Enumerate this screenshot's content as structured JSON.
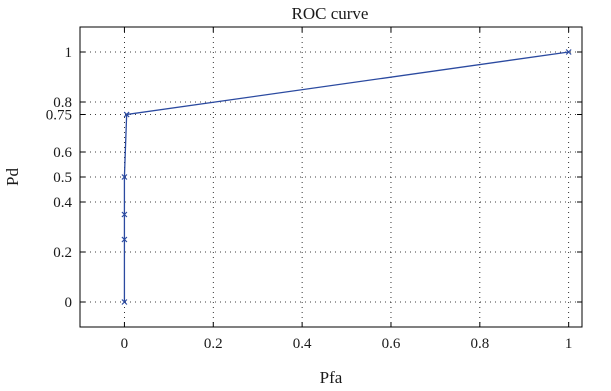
{
  "chart_data": {
    "type": "line",
    "title": "ROC curve",
    "xlabel": "Pfa",
    "ylabel": "Pd",
    "xlim": [
      -0.1,
      1.03
    ],
    "ylim": [
      -0.1,
      1.1
    ],
    "x_ticks": [
      0,
      0.2,
      0.4,
      0.6,
      0.8,
      1
    ],
    "x_tick_labels": [
      "0",
      "0.2",
      "0.4",
      "0.6",
      "0.8",
      "1"
    ],
    "y_ticks": [
      0,
      0.2,
      0.4,
      0.5,
      0.6,
      0.75,
      0.8,
      1
    ],
    "y_tick_labels": [
      "0",
      "0.2",
      "0.4",
      "0.5",
      "0.6",
      "0.75",
      "0.8",
      "1"
    ],
    "grid": true,
    "series": [
      {
        "x": [
          0,
          0,
          0,
          0,
          0.005,
          1
        ],
        "y": [
          0,
          0.25,
          0.35,
          0.5,
          0.75,
          1
        ],
        "color": "#2b4aa0",
        "marker": "x"
      }
    ]
  }
}
